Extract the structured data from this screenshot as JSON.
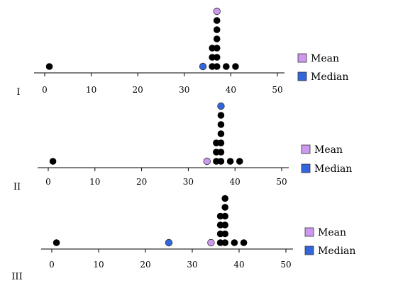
{
  "chart_data": [
    {
      "type": "scatter",
      "panel_label": "I",
      "xlim": [
        0,
        50
      ],
      "ticks": [
        0,
        10,
        20,
        30,
        40,
        50
      ],
      "stacks": [
        {
          "x": 1,
          "count": 1
        },
        {
          "x": 36,
          "count": 3
        },
        {
          "x": 37,
          "count": 6
        },
        {
          "x": 39,
          "count": 1
        },
        {
          "x": 41,
          "count": 1
        }
      ],
      "mean": 37,
      "median": 34
    },
    {
      "type": "scatter",
      "panel_label": "II",
      "xlim": [
        0,
        50
      ],
      "ticks": [
        0,
        10,
        20,
        30,
        40,
        50
      ],
      "stacks": [
        {
          "x": 1,
          "count": 1
        },
        {
          "x": 36,
          "count": 3
        },
        {
          "x": 37,
          "count": 6
        },
        {
          "x": 39,
          "count": 1
        },
        {
          "x": 41,
          "count": 1
        }
      ],
      "mean": 34,
      "median": 37
    },
    {
      "type": "scatter",
      "panel_label": "III",
      "xlim": [
        0,
        50
      ],
      "ticks": [
        0,
        10,
        20,
        30,
        40,
        50
      ],
      "stacks": [
        {
          "x": 1,
          "count": 1
        },
        {
          "x": 36,
          "count": 4
        },
        {
          "x": 37,
          "count": 6
        },
        {
          "x": 39,
          "count": 1
        },
        {
          "x": 41,
          "count": 1
        }
      ],
      "mean": 34,
      "median": 25
    }
  ],
  "legend": {
    "mean_label": "Mean",
    "median_label": "Median"
  },
  "colors": {
    "data": "#000000",
    "mean": "#cc99ee",
    "median": "#3366dd"
  }
}
